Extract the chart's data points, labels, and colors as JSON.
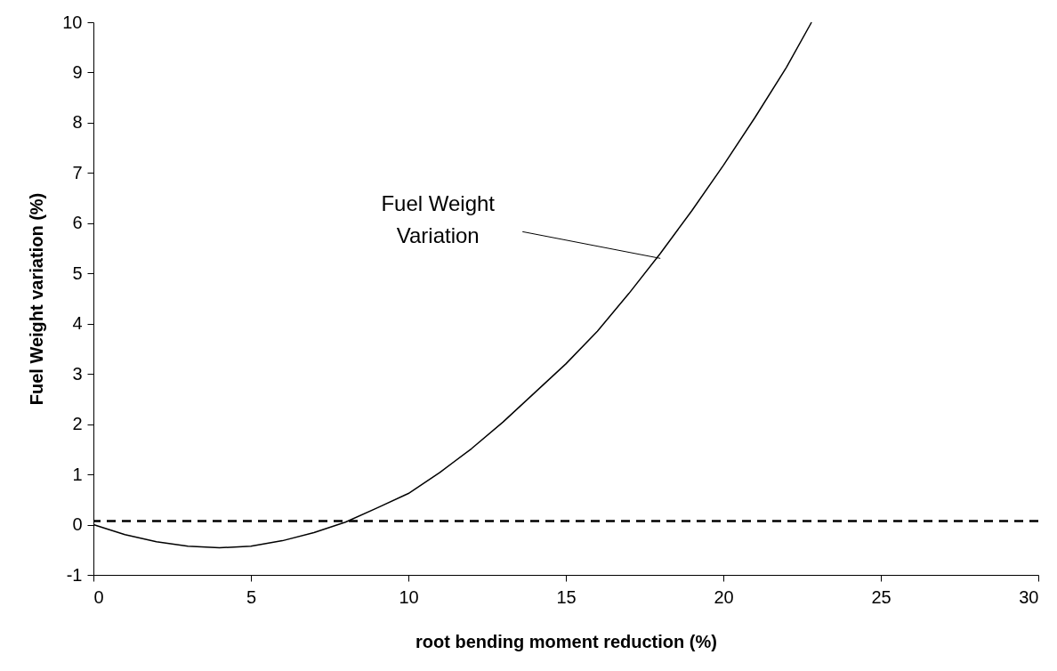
{
  "chart_data": {
    "type": "line",
    "xlabel": "root bending moment reduction (%)",
    "ylabel": "Fuel Weight variation (%)",
    "x": [
      0,
      1,
      2,
      3,
      4,
      5,
      6,
      7,
      8,
      9,
      10,
      11,
      12,
      13,
      14,
      15,
      16,
      17,
      18,
      19,
      20,
      21,
      22,
      22.8
    ],
    "series": [
      {
        "color": "#000000",
        "values": [
          0,
          -0.2,
          -0.34,
          -0.43,
          -0.46,
          -0.43,
          -0.32,
          -0.16,
          0.05,
          0.33,
          0.62,
          1.04,
          1.51,
          2.04,
          2.62,
          3.2,
          3.85,
          4.6,
          5.4,
          6.25,
          7.15,
          8.1,
          9.1,
          10
        ]
      }
    ],
    "xlim": [
      0,
      30
    ],
    "xticks": [
      0,
      5,
      10,
      15,
      20,
      25,
      30
    ],
    "ylim": [
      -1,
      10
    ],
    "yticks": [
      -1,
      0,
      1,
      2,
      3,
      4,
      5,
      6,
      7,
      8,
      9,
      10
    ],
    "grid": false,
    "marker": "none",
    "line_style": "solid",
    "ref_lines": [
      {
        "axis": "y",
        "value": 0.07,
        "color": "#000000",
        "line_style": "dashed"
      }
    ],
    "annotations": [
      {
        "text": "Fuel Weight\nVariation",
        "x": 18,
        "y": 5.3
      }
    ]
  }
}
